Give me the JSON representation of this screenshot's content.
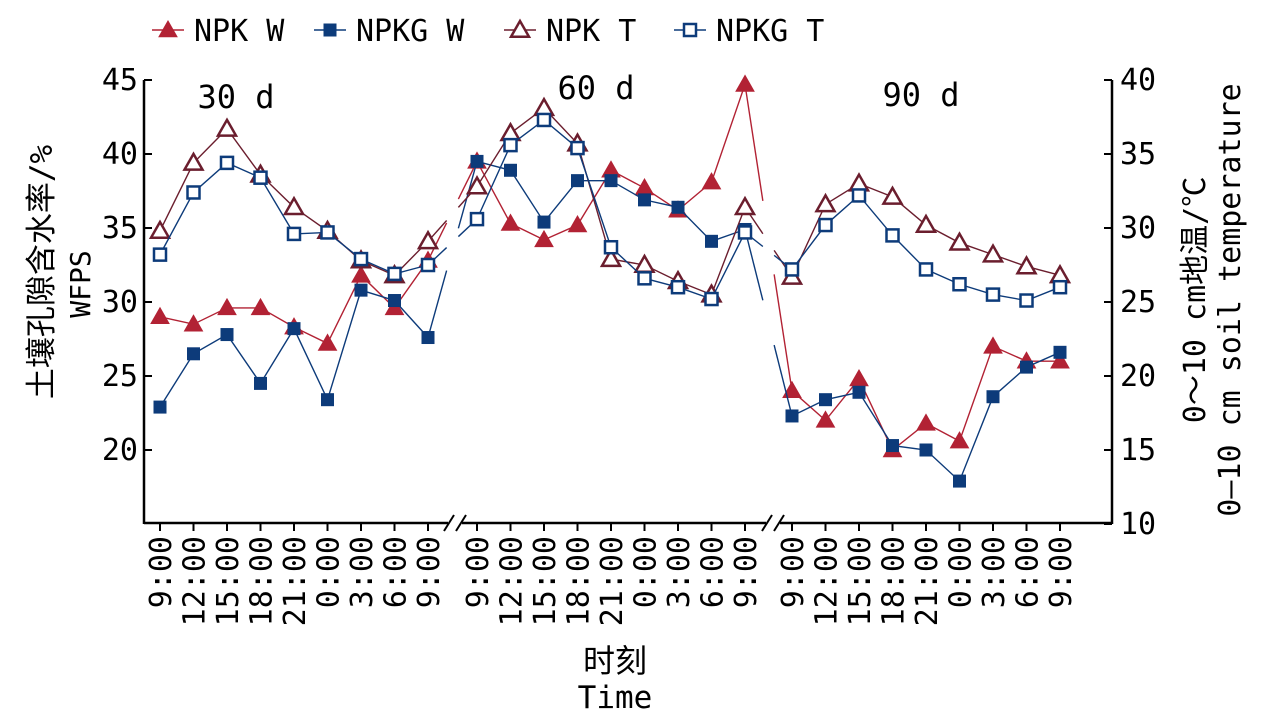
{
  "legend": {
    "items": [
      {
        "label": "NPK W",
        "color": "#b22234",
        "marker": "filled-triangle"
      },
      {
        "label": "NPKG W",
        "color": "#0d3b7a",
        "marker": "filled-square"
      },
      {
        "label": "NPK T",
        "color": "#6b1e2e",
        "marker": "open-triangle"
      },
      {
        "label": "NPKG T",
        "color": "#0d3b7a",
        "marker": "open-square"
      }
    ]
  },
  "chart_data": {
    "type": "line",
    "x_title": "时刻",
    "x_title_en": "Time",
    "y_left_label": "土壤孔隙含水率/%",
    "y_left_label_2": "WFPS",
    "y_right_label": "0～10 cm地温/℃",
    "y_right_label_2": "0–10 cm soil temperature",
    "y_left_range": [
      15,
      45
    ],
    "y_left_ticks": [
      "20",
      "25",
      "30",
      "35",
      "40",
      "45"
    ],
    "y_right_range": [
      10,
      40
    ],
    "y_right_ticks": [
      "10",
      "15",
      "20",
      "25",
      "30",
      "35",
      "40"
    ],
    "segment_labels": [
      "30 d",
      "60 d",
      "90 d"
    ],
    "time_labels": [
      [
        "9:00",
        "12:00",
        "15:00",
        "18:00",
        "21:00",
        "0:00",
        "3:00",
        "6:00",
        "9:00"
      ],
      [
        "9:00",
        "12:00",
        "15:00",
        "18:00",
        "21:00",
        "0:00",
        "3:00",
        "6:00",
        "9:00"
      ],
      [
        "9:00",
        "12:00",
        "15:00",
        "18:00",
        "21:00",
        "0:00",
        "3:00",
        "6:00",
        "9:00"
      ]
    ],
    "series": [
      {
        "name": "NPK W",
        "axis": "left",
        "values": [
          [
            29.0,
            28.5,
            29.6,
            29.6,
            28.3,
            27.2,
            31.8,
            29.6,
            32.8
          ],
          [
            39.5,
            35.3,
            34.2,
            35.2,
            38.9,
            37.7,
            36.2,
            38.1,
            44.7
          ],
          [
            24.0,
            22.0,
            24.8,
            20.0,
            21.8,
            20.6,
            27.0,
            26.0,
            26.0
          ]
        ]
      },
      {
        "name": "NPKG W",
        "axis": "left",
        "values": [
          [
            22.9,
            26.5,
            27.8,
            24.5,
            28.2,
            23.4,
            30.8,
            30.1,
            27.6
          ],
          [
            39.5,
            38.9,
            35.4,
            38.2,
            38.2,
            36.9,
            36.4,
            34.1,
            34.9
          ],
          [
            22.3,
            23.4,
            23.9,
            20.3,
            20.0,
            17.9,
            23.6,
            25.6,
            26.6
          ]
        ]
      },
      {
        "name": "NPK T",
        "axis": "right",
        "values": [
          [
            29.8,
            34.4,
            36.7,
            33.6,
            31.4,
            29.8,
            27.8,
            26.8,
            29.1
          ],
          [
            32.8,
            36.4,
            38.1,
            35.7,
            27.9,
            27.5,
            26.4,
            25.5,
            31.4
          ],
          [
            26.7,
            31.6,
            33.0,
            32.1,
            30.2,
            29.0,
            28.2,
            27.4,
            26.8
          ]
        ]
      },
      {
        "name": "NPKG T",
        "axis": "right",
        "values": [
          [
            28.2,
            32.4,
            34.4,
            33.4,
            29.6,
            29.7,
            27.9,
            26.9,
            27.5
          ],
          [
            30.6,
            35.6,
            37.3,
            35.4,
            28.7,
            26.6,
            26.0,
            25.2,
            29.7
          ],
          [
            27.2,
            30.2,
            32.2,
            29.5,
            27.2,
            26.2,
            25.5,
            25.1,
            26.0
          ]
        ]
      }
    ]
  }
}
